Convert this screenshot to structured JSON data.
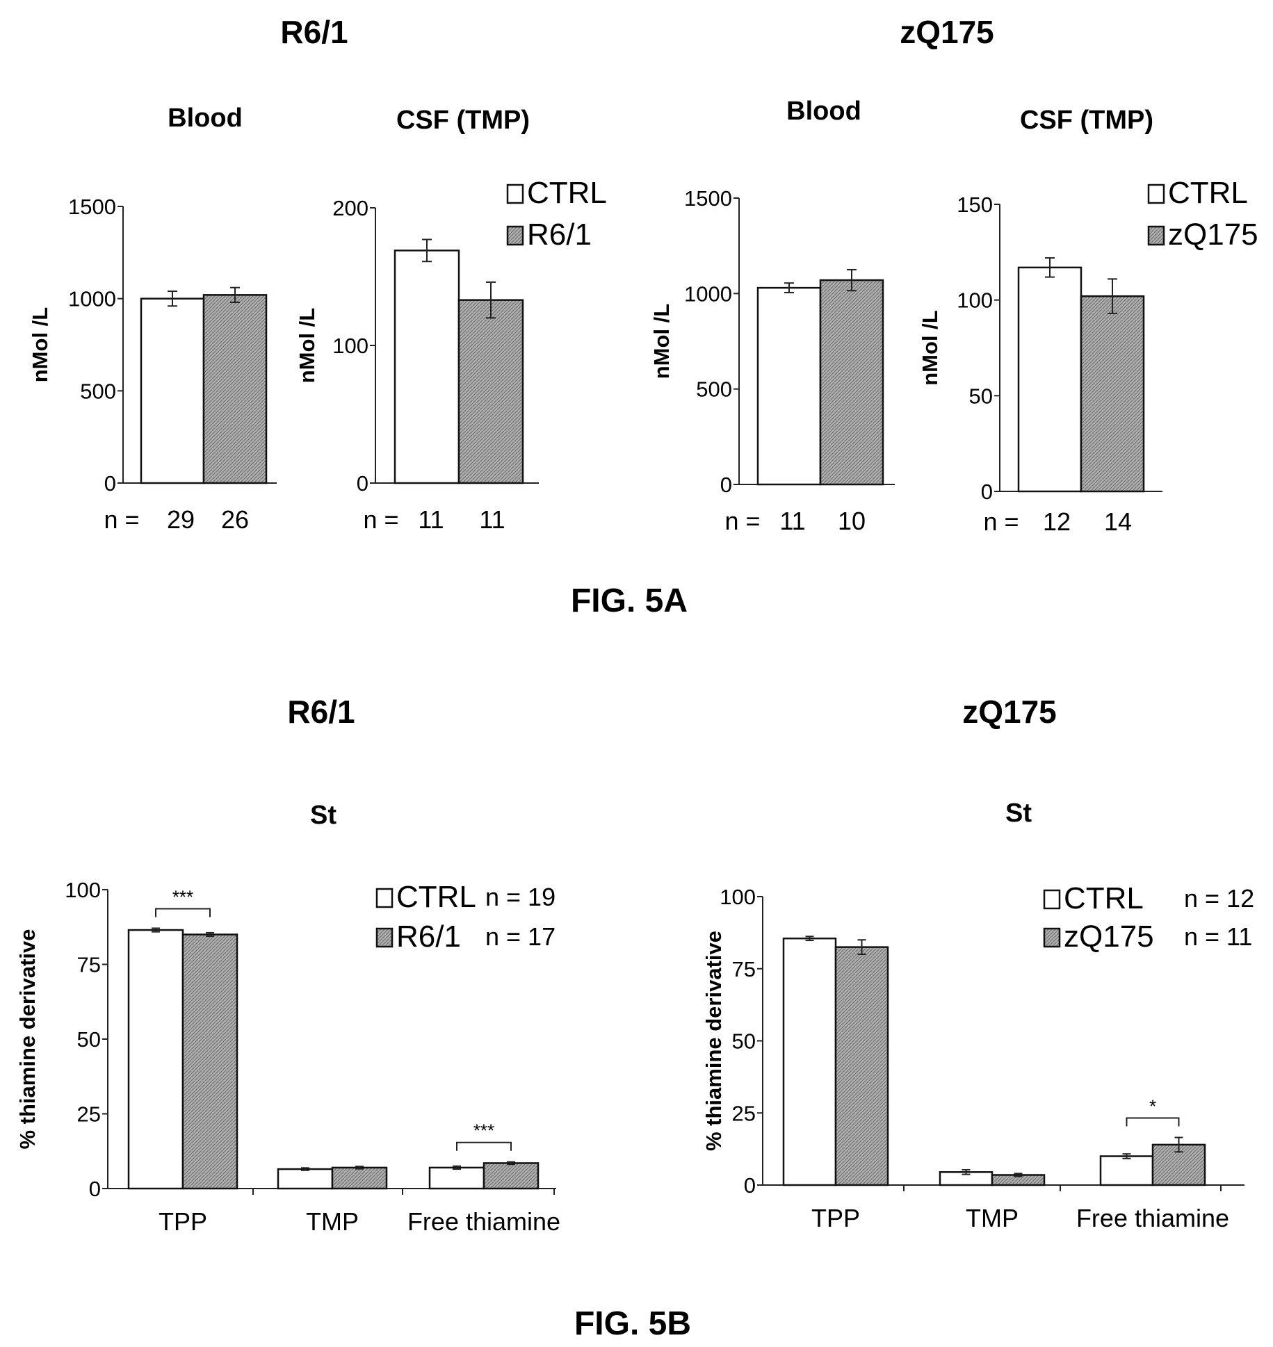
{
  "colors": {
    "ctrl_fill": "#ffffff",
    "disease_fill": "#a6a6a6",
    "stroke": "#111111"
  },
  "figure_labels": {
    "fig5a": "FIG. 5A",
    "fig5b": "FIG. 5B"
  },
  "headings": {
    "a_left": "R6/1",
    "a_right": "zQ175",
    "b_left": "R6/1",
    "b_right": "zQ175"
  },
  "chart_data": [
    {
      "id": "a1",
      "type": "bar",
      "title": "Blood",
      "ylabel": "nMol /L",
      "ylim": [
        0,
        1500
      ],
      "yticks": [
        0,
        500,
        1000,
        1500
      ],
      "categories": [
        "CTRL",
        "R6/1"
      ],
      "values": [
        1000,
        1020
      ],
      "errors": [
        40,
        40
      ],
      "n_prefix": "n =",
      "n": [
        "29",
        "26"
      ]
    },
    {
      "id": "a2",
      "type": "bar",
      "title": "CSF (TMP)",
      "ylabel": "nMol /L",
      "ylim": [
        0,
        200
      ],
      "yticks": [
        0,
        100,
        200
      ],
      "categories": [
        "CTRL",
        "R6/1"
      ],
      "values": [
        169,
        133
      ],
      "errors": [
        8,
        13
      ],
      "n_prefix": "n =",
      "n": [
        "11",
        "11"
      ],
      "legend": [
        "CTRL",
        "R6/1"
      ]
    },
    {
      "id": "a3",
      "type": "bar",
      "title": "Blood",
      "ylabel": "nMol /L",
      "ylim": [
        0,
        1500
      ],
      "yticks": [
        0,
        500,
        1000,
        1500
      ],
      "categories": [
        "CTRL",
        "zQ175"
      ],
      "values": [
        1030,
        1070
      ],
      "errors": [
        25,
        55
      ],
      "n_prefix": "n =",
      "n": [
        "11",
        "10"
      ]
    },
    {
      "id": "a4",
      "type": "bar",
      "title": "CSF (TMP)",
      "ylabel": "nMol /L",
      "ylim": [
        0,
        150
      ],
      "yticks": [
        0,
        50,
        100,
        150
      ],
      "categories": [
        "CTRL",
        "zQ175"
      ],
      "values": [
        117,
        102
      ],
      "errors": [
        5,
        9
      ],
      "n_prefix": "n =",
      "n": [
        "12",
        "14"
      ],
      "legend": [
        "CTRL",
        "zQ175"
      ]
    },
    {
      "id": "b1",
      "type": "bar",
      "title": "St",
      "ylabel": "% thiamine derivative",
      "ylim": [
        0,
        100
      ],
      "yticks": [
        0,
        25,
        50,
        75,
        100
      ],
      "categories": [
        "TPP",
        "TMP",
        "Free thiamine"
      ],
      "series": [
        {
          "name": "CTRL",
          "values": [
            86.5,
            6.5,
            7
          ],
          "errors": [
            0.6,
            0.4,
            0.5
          ]
        },
        {
          "name": "R6/1",
          "values": [
            85,
            7,
            8.5
          ],
          "errors": [
            0.6,
            0.4,
            0.4
          ]
        }
      ],
      "legend": [
        "CTRL",
        "R6/1"
      ],
      "legend_n": [
        "n = 19",
        "n = 17"
      ],
      "significance": [
        {
          "category": 0,
          "label": "***"
        },
        {
          "category": 2,
          "label": "***"
        }
      ]
    },
    {
      "id": "b2",
      "type": "bar",
      "title": "St",
      "ylabel": "% thiamine derivative",
      "ylim": [
        0,
        100
      ],
      "yticks": [
        0,
        25,
        50,
        75,
        100
      ],
      "categories": [
        "TPP",
        "TMP",
        "Free thiamine"
      ],
      "series": [
        {
          "name": "CTRL",
          "values": [
            85.5,
            4.5,
            10
          ],
          "errors": [
            0.7,
            0.8,
            0.8
          ]
        },
        {
          "name": "zQ175",
          "values": [
            82.5,
            3.5,
            14
          ],
          "errors": [
            2.5,
            0.5,
            2.5
          ]
        }
      ],
      "legend": [
        "CTRL",
        "zQ175"
      ],
      "legend_n": [
        "n = 12",
        "n = 11"
      ],
      "significance": [
        {
          "category": 2,
          "label": "*"
        }
      ]
    }
  ]
}
